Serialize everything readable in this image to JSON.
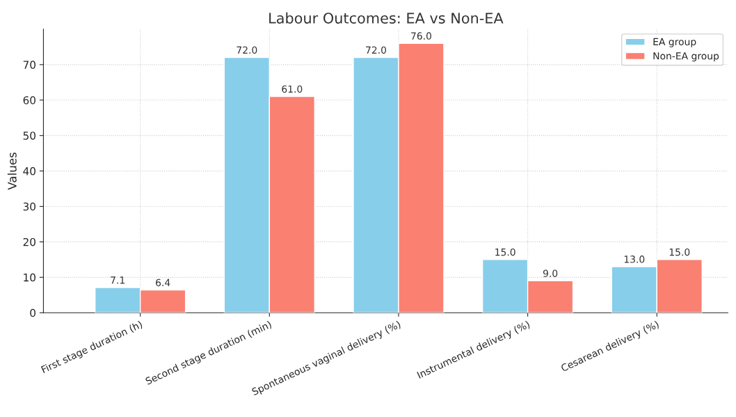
{
  "chart_data": {
    "type": "bar",
    "title": "Labour Outcomes: EA vs Non-EA",
    "ylabel": "Values",
    "categories": [
      "First stage duration (h)",
      "Second stage duration (min)",
      "Spontaneous vaginal delivery (%)",
      "Instrumental delivery (%)",
      "Cesarean delivery (%)"
    ],
    "series": [
      {
        "name": "EA group",
        "color": "#87ceeb",
        "values": [
          7.1,
          72.0,
          72.0,
          15.0,
          13.0
        ]
      },
      {
        "name": "Non-EA group",
        "color": "#fa8072",
        "values": [
          6.4,
          61.0,
          76.0,
          9.0,
          15.0
        ]
      }
    ],
    "value_labels": [
      [
        "7.1",
        "72.0",
        "72.0",
        "15.0",
        "13.0"
      ],
      [
        "6.4",
        "61.0",
        "76.0",
        "9.0",
        "15.0"
      ]
    ],
    "ylim": [
      0,
      80
    ],
    "yticks": [
      0,
      10,
      20,
      30,
      40,
      50,
      60,
      70
    ],
    "grid": true,
    "legend": "top right"
  }
}
